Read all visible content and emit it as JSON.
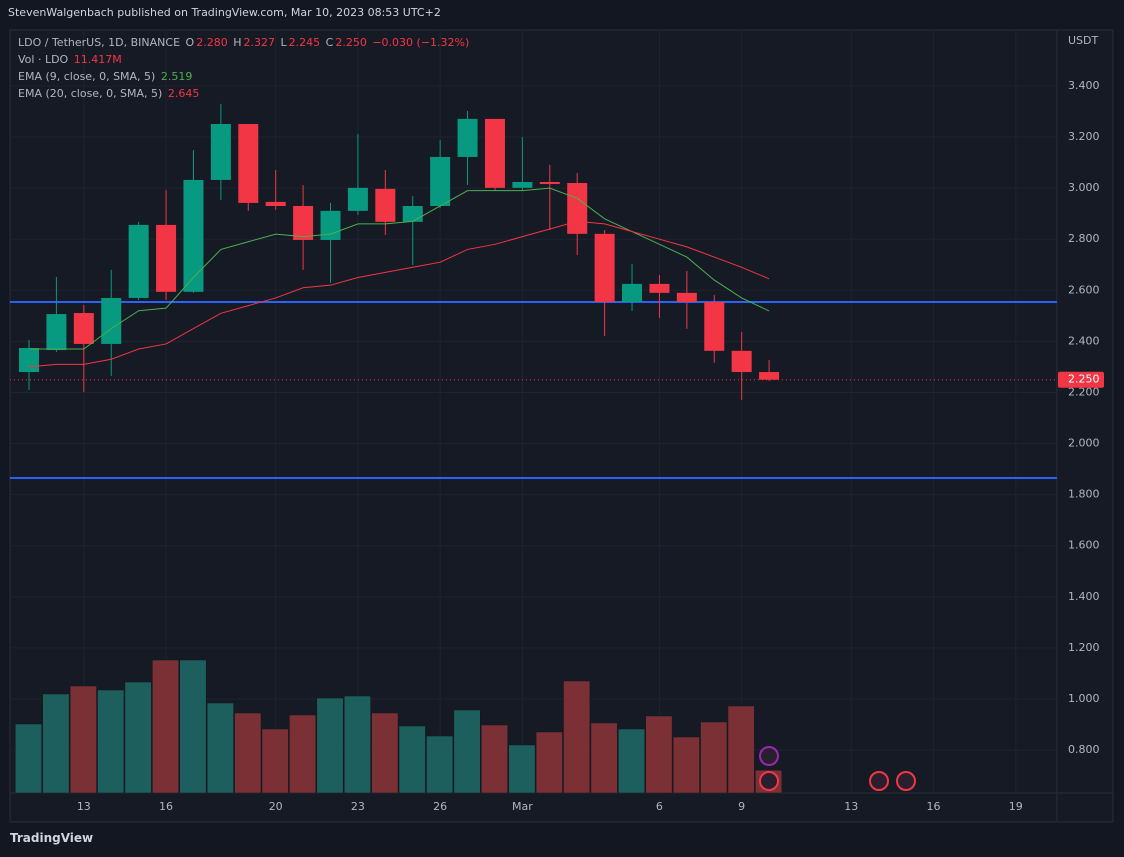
{
  "chart_data": {
    "type": "candlestick",
    "title": "StevenWalgenbach published on TradingView.com, Mar 10, 2023 08:53 UTC+2",
    "currency": "USDT",
    "brand": "TradingView",
    "legend": {
      "symbol": "LDO / TetherUS, 1D, BINANCE",
      "o_key": "O",
      "o": "2.280",
      "h_key": "H",
      "h": "2.327",
      "l_key": "L",
      "l": "2.245",
      "c_key": "C",
      "c": "2.250",
      "change": "−0.030 (−1.32%)"
    },
    "up_color": "#089981",
    "down_color": "#f23645",
    "categories": [
      null,
      null,
      "13",
      null,
      null,
      "16",
      null,
      null,
      null,
      "20",
      null,
      null,
      "23",
      null,
      null,
      "26",
      null,
      null,
      "Mar",
      null,
      null,
      null,
      null,
      "6",
      null,
      null,
      "9",
      null,
      null,
      null,
      "13",
      null,
      null,
      "16",
      null,
      null,
      "19",
      null
    ],
    "open": [
      2.28,
      2.366,
      2.511,
      2.39,
      2.57,
      2.856,
      2.594,
      3.032,
      3.251,
      2.946,
      2.93,
      2.797,
      2.911,
      2.997,
      2.868,
      2.93,
      3.122,
      3.271,
      3.001,
      3.024,
      3.02,
      2.821,
      2.554,
      2.625,
      2.59,
      2.554,
      2.363,
      2.28,
      null,
      null,
      null,
      null,
      null,
      null,
      null,
      null,
      null,
      null
    ],
    "high": [
      2.406,
      2.652,
      2.543,
      2.68,
      2.868,
      2.993,
      3.149,
      3.33,
      3.251,
      3.071,
      3.012,
      2.942,
      3.212,
      3.071,
      2.969,
      3.189,
      3.302,
      3.271,
      3.2,
      3.091,
      3.059,
      2.836,
      2.703,
      2.66,
      2.676,
      2.582,
      2.437,
      2.327,
      null,
      null,
      null,
      null,
      null,
      null,
      null,
      null,
      null,
      null
    ],
    "low": [
      2.21,
      2.359,
      2.202,
      2.265,
      2.562,
      2.562,
      2.59,
      2.954,
      2.911,
      2.915,
      2.68,
      2.629,
      2.895,
      2.817,
      2.699,
      2.922,
      3.012,
      2.993,
      2.993,
      2.836,
      2.738,
      2.421,
      2.519,
      2.492,
      2.449,
      2.316,
      2.171,
      2.245,
      null,
      null,
      null,
      null,
      null,
      null,
      null,
      null,
      null,
      null
    ],
    "close": [
      2.374,
      2.507,
      2.39,
      2.57,
      2.856,
      2.594,
      3.032,
      3.251,
      2.942,
      2.93,
      2.797,
      2.911,
      3.001,
      2.868,
      2.93,
      3.122,
      3.271,
      3.001,
      3.024,
      3.016,
      2.821,
      2.554,
      2.625,
      2.59,
      2.554,
      2.363,
      2.28,
      2.25,
      null,
      null,
      null,
      null,
      null,
      null,
      null,
      null,
      null,
      null
    ],
    "volume_series": {
      "name": "Vol · LDO",
      "label": "11.417M",
      "values": [
        34.5,
        49.5,
        53.5,
        51.5,
        55.5,
        66.5,
        66.5,
        45,
        40,
        32,
        39,
        47.5,
        48.5,
        40,
        33.5,
        28.5,
        41.5,
        34,
        24,
        30.5,
        56,
        35,
        32,
        38.5,
        28,
        35.5,
        43.5,
        11.417,
        null,
        null,
        null,
        null,
        null,
        null,
        null,
        null,
        null,
        null
      ]
    },
    "series": [
      {
        "name": "EMA (9, close, 0, SMA, 5)",
        "color": "#4caf50",
        "value_label": "2.519",
        "values": [
          2.37,
          2.37,
          2.37,
          2.45,
          2.52,
          2.53,
          2.65,
          2.76,
          2.79,
          2.82,
          2.81,
          2.82,
          2.86,
          2.86,
          2.87,
          2.93,
          2.99,
          2.99,
          2.99,
          3.0,
          2.96,
          2.88,
          2.83,
          2.78,
          2.73,
          2.64,
          2.57,
          2.519,
          null,
          null,
          null,
          null,
          null,
          null,
          null,
          null,
          null,
          null
        ]
      },
      {
        "name": "EMA (20, close, 0, SMA, 5)",
        "color": "#f23645",
        "value_label": "2.645",
        "values": [
          2.3,
          2.31,
          2.31,
          2.33,
          2.37,
          2.39,
          2.45,
          2.51,
          2.54,
          2.57,
          2.61,
          2.62,
          2.65,
          2.67,
          2.69,
          2.71,
          2.76,
          2.78,
          2.81,
          2.84,
          2.87,
          2.86,
          2.83,
          2.8,
          2.77,
          2.73,
          2.69,
          2.645,
          null,
          null,
          null,
          null,
          null,
          null,
          null,
          null,
          null,
          null
        ]
      }
    ],
    "hlines": [
      {
        "value": 2.554,
        "color": "#2962ff"
      },
      {
        "value": 1.865,
        "color": "#2962ff"
      }
    ],
    "last_price": {
      "value": 2.25,
      "label": "2.250"
    },
    "ylim": [
      0.632,
      3.619
    ],
    "yticks": [
      {
        "value": 0.8,
        "label": "0.800"
      },
      {
        "value": 1.0,
        "label": "1.000"
      },
      {
        "value": 1.2,
        "label": "1.200"
      },
      {
        "value": 1.4,
        "label": "1.400"
      },
      {
        "value": 1.6,
        "label": "1.600"
      },
      {
        "value": 1.8,
        "label": "1.800"
      },
      {
        "value": 2.0,
        "label": "2.000"
      },
      {
        "value": 2.2,
        "label": "2.200"
      },
      {
        "value": 2.4,
        "label": "2.400"
      },
      {
        "value": 2.6,
        "label": "2.600"
      },
      {
        "value": 2.8,
        "label": "2.800"
      },
      {
        "value": 3.0,
        "label": "3.000"
      },
      {
        "value": 3.2,
        "label": "3.200"
      },
      {
        "value": 3.4,
        "label": "3.400"
      }
    ],
    "grid": true
  }
}
